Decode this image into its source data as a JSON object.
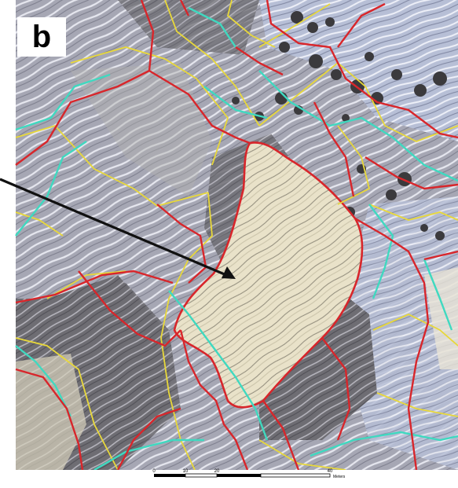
{
  "panel": {
    "label": "b"
  },
  "scale_bar": {
    "ticks": [
      "0",
      "10",
      "20",
      "40"
    ],
    "unit": "Meters"
  },
  "colors": {
    "boundary_red": "#d8262b",
    "boundary_yellow": "#e8d83a",
    "boundary_cyan": "#3fd9c0",
    "arrow": "#111111",
    "highlighted_area": "#e9e1c6",
    "terrace_field": "#9a9aa6",
    "dark_field": "#6e6d72"
  },
  "icons": {
    "arrow": "pointer-arrow-icon"
  }
}
